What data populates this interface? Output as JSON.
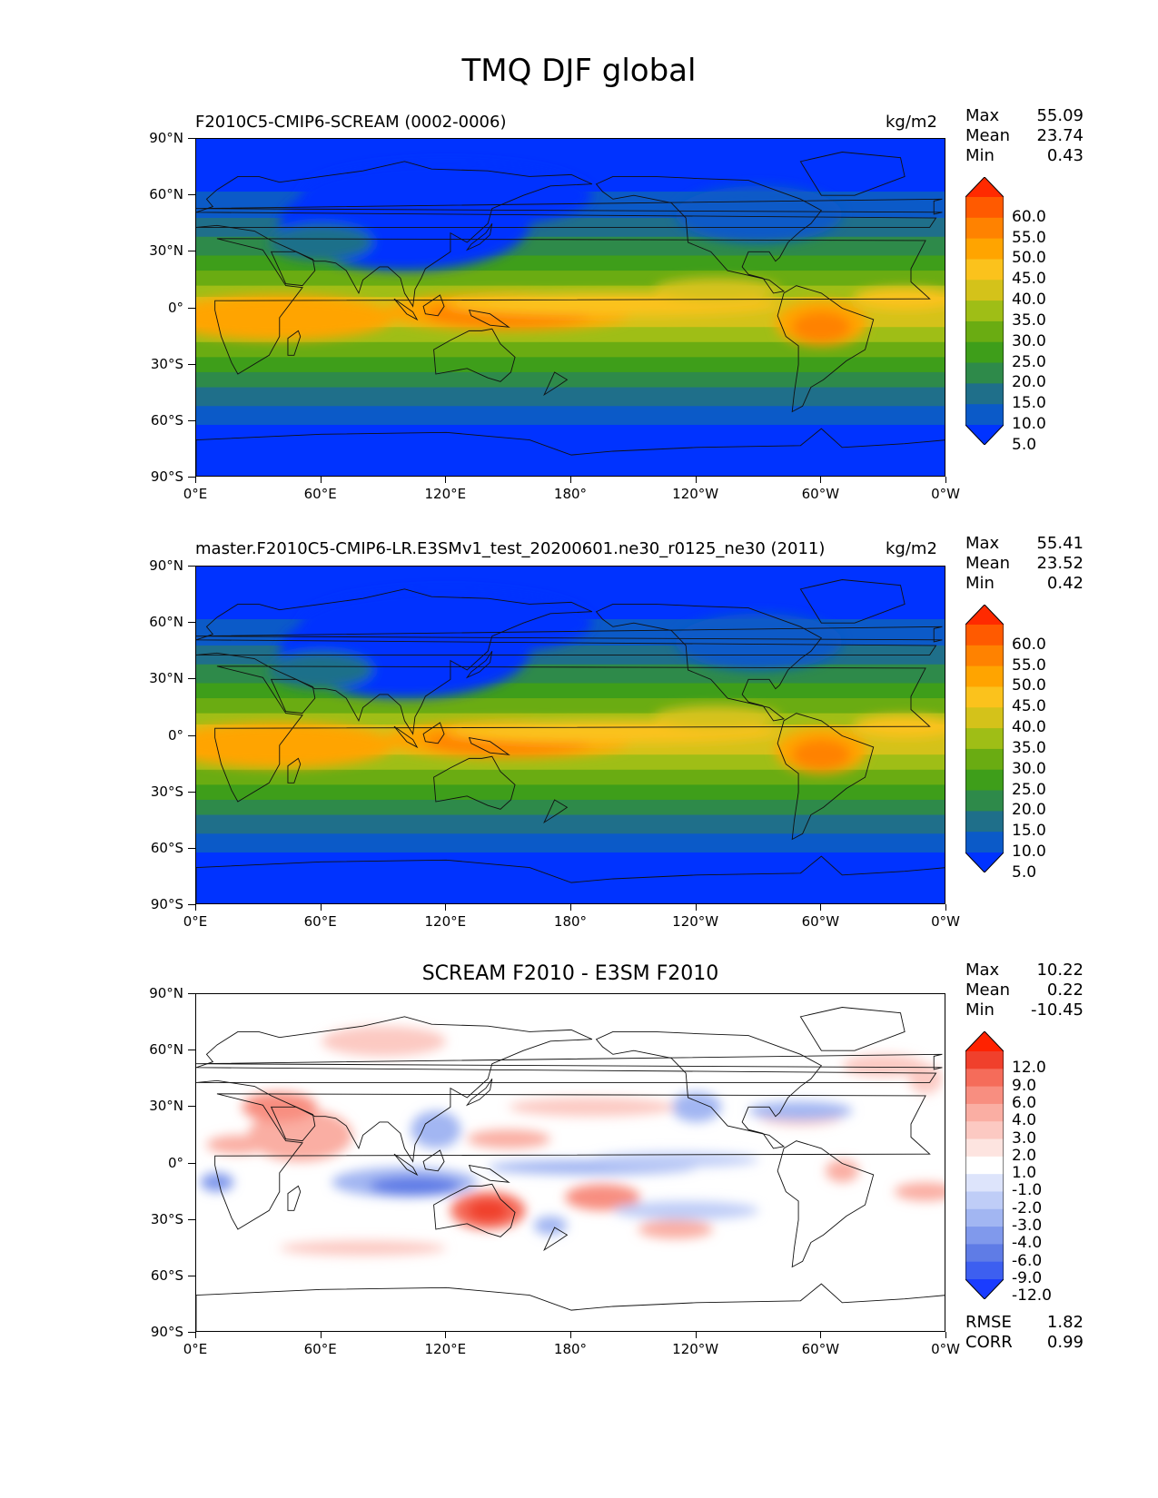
{
  "figure": {
    "title": "TMQ DJF global"
  },
  "x_ticks": [
    "0°E",
    "60°E",
    "120°E",
    "180°",
    "120°W",
    "60°W",
    "0°W"
  ],
  "y_ticks": [
    "90°N",
    "60°N",
    "30°N",
    "0°",
    "30°S",
    "60°S",
    "90°S"
  ],
  "panels": [
    {
      "title_left": "F2010C5-CMIP6-SCREAM (0002-0006)",
      "title_right": "kg/m2",
      "stats": {
        "max_label": "Max",
        "max": "55.09",
        "mean_label": "Mean",
        "mean": "23.74",
        "min_label": "Min",
        "min": "0.43"
      },
      "colorbar": {
        "labels": [
          "60.0",
          "55.0",
          "50.0",
          "45.0",
          "40.0",
          "35.0",
          "30.0",
          "25.0",
          "20.0",
          "15.0",
          "10.0",
          "5.0"
        ],
        "colors": [
          "#ff2a00",
          "#ff5a00",
          "#ff8200",
          "#ffa400",
          "#fbc21c",
          "#d4c21a",
          "#9fbe16",
          "#6aac12",
          "#3e9e1a",
          "#2e8a4a",
          "#1f6f8a",
          "#0b5ac8",
          "#0033ff"
        ]
      }
    },
    {
      "title_left": "master.F2010C5-CMIP6-LR.E3SMv1_test_20200601.ne30_r0125_ne30 (2011)",
      "title_right": "kg/m2",
      "stats": {
        "max_label": "Max",
        "max": "55.41",
        "mean_label": "Mean",
        "mean": "23.52",
        "min_label": "Min",
        "min": "0.42"
      },
      "colorbar": {
        "labels": [
          "60.0",
          "55.0",
          "50.0",
          "45.0",
          "40.0",
          "35.0",
          "30.0",
          "25.0",
          "20.0",
          "15.0",
          "10.0",
          "5.0"
        ],
        "colors": [
          "#ff2a00",
          "#ff5a00",
          "#ff8200",
          "#ffa400",
          "#fbc21c",
          "#d4c21a",
          "#9fbe16",
          "#6aac12",
          "#3e9e1a",
          "#2e8a4a",
          "#1f6f8a",
          "#0b5ac8",
          "#0033ff"
        ]
      }
    },
    {
      "title_center": "SCREAM F2010 - E3SM F2010",
      "stats": {
        "max_label": "Max",
        "max": "10.22",
        "mean_label": "Mean",
        "mean": "0.22",
        "min_label": "Min",
        "min": "-10.45"
      },
      "colorbar": {
        "labels": [
          "12.0",
          "9.0",
          "6.0",
          "4.0",
          "3.0",
          "2.0",
          "1.0",
          "-1.0",
          "-2.0",
          "-3.0",
          "-4.0",
          "-6.0",
          "-9.0",
          "-12.0"
        ],
        "colors": [
          "#ff2200",
          "#f0402c",
          "#f56c5a",
          "#f88e80",
          "#faaea3",
          "#fcc9c2",
          "#fde4e0",
          "#ffffff",
          "#dde4fb",
          "#bfcdf7",
          "#a2b6f2",
          "#8099ec",
          "#5f7ce6",
          "#3d5ff0",
          "#1a3cff"
        ]
      },
      "metrics": {
        "rmse_label": "RMSE",
        "rmse": "1.82",
        "corr_label": "CORR",
        "corr": "0.99"
      }
    }
  ]
}
